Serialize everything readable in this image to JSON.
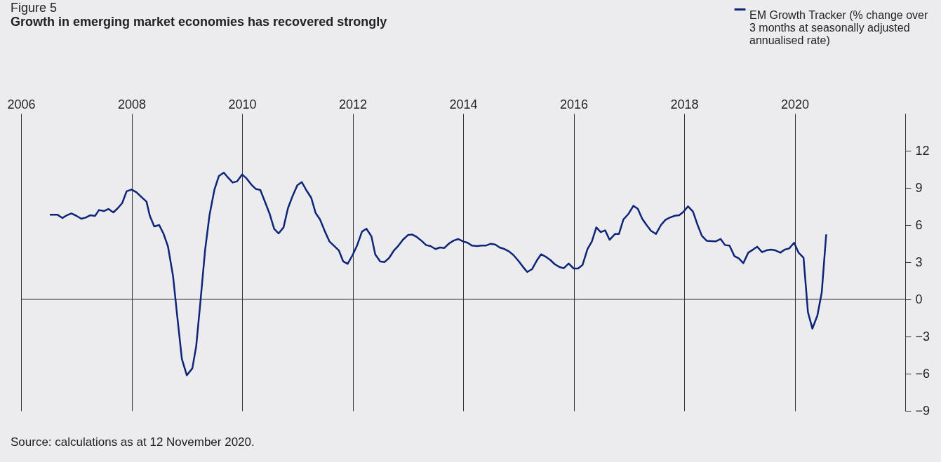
{
  "chart_data": {
    "type": "line",
    "title": "Figure 5",
    "subtitle": "Growth in emerging market economies has recovered strongly",
    "annotations": [
      "Source: calculations as at 12 November 2020."
    ],
    "xlim": [
      2006,
      2022
    ],
    "xticks": [
      2006,
      2008,
      2010,
      2012,
      2014,
      2016,
      2018,
      2020,
      {
        "value": 2022,
        "label": null
      }
    ],
    "ylim": [
      -9,
      15
    ],
    "yticks": [
      -9,
      -6,
      -3,
      0,
      3,
      6,
      9,
      12
    ],
    "grid": "x",
    "legend": "top right",
    "line_style": "solid",
    "ref_lines": [
      {
        "axis": "y",
        "value": 0,
        "color": "#333333"
      }
    ],
    "series": [
      {
        "name": "EM Growth Tracker (% change over 3 months at seasonally adjusted annualised rate)",
        "color": "#0c2577",
        "x": [
          2006.52,
          2006.66,
          2006.75,
          2006.83,
          2006.91,
          2007.0,
          2007.09,
          2007.17,
          2007.25,
          2007.34,
          2007.41,
          2007.5,
          2007.58,
          2007.67,
          2007.75,
          2007.83,
          2007.91,
          2008.0,
          2008.09,
          2008.18,
          2008.27,
          2008.33,
          2008.41,
          2008.5,
          2008.58,
          2008.66,
          2008.75,
          2008.83,
          2008.91,
          2009.0,
          2009.1,
          2009.17,
          2009.25,
          2009.33,
          2009.41,
          2009.5,
          2009.58,
          2009.67,
          2009.75,
          2009.83,
          2009.91,
          2010.0,
          2010.08,
          2010.17,
          2010.25,
          2010.33,
          2010.41,
          2010.5,
          2010.58,
          2010.66,
          2010.75,
          2010.83,
          2010.91,
          2011.0,
          2011.08,
          2011.16,
          2011.25,
          2011.33,
          2011.41,
          2011.5,
          2011.58,
          2011.66,
          2011.75,
          2011.83,
          2011.91,
          2012.0,
          2012.08,
          2012.17,
          2012.25,
          2012.34,
          2012.41,
          2012.5,
          2012.58,
          2012.66,
          2012.75,
          2012.83,
          2012.91,
          2013.0,
          2013.08,
          2013.16,
          2013.25,
          2013.33,
          2013.41,
          2013.5,
          2013.58,
          2013.66,
          2013.75,
          2013.83,
          2013.91,
          2014.0,
          2014.08,
          2014.16,
          2014.25,
          2014.33,
          2014.41,
          2014.5,
          2014.58,
          2014.66,
          2014.75,
          2014.83,
          2014.91,
          2015.0,
          2015.08,
          2015.16,
          2015.25,
          2015.33,
          2015.41,
          2015.5,
          2015.58,
          2015.66,
          2015.75,
          2015.82,
          2015.91,
          2016.0,
          2016.08,
          2016.16,
          2016.25,
          2016.33,
          2016.41,
          2016.49,
          2016.57,
          2016.65,
          2016.75,
          2016.82,
          2016.9,
          2016.99,
          2017.08,
          2017.16,
          2017.24,
          2017.32,
          2017.4,
          2017.49,
          2017.58,
          2017.66,
          2017.74,
          2017.83,
          2017.91,
          2017.99,
          2018.07,
          2018.16,
          2018.24,
          2018.32,
          2018.41,
          2018.57,
          2018.66,
          2018.74,
          2018.82,
          2018.91,
          2018.99,
          2019.07,
          2019.16,
          2019.24,
          2019.32,
          2019.41,
          2019.49,
          2019.57,
          2019.65,
          2019.74,
          2019.82,
          2019.9,
          2019.99,
          2020.07,
          2020.16,
          2020.24,
          2020.32,
          2020.41,
          2020.49,
          2020.57
        ],
        "values": [
          6.83,
          6.83,
          6.57,
          6.79,
          6.94,
          6.75,
          6.51,
          6.6,
          6.79,
          6.74,
          7.21,
          7.13,
          7.3,
          7.02,
          7.36,
          7.77,
          8.72,
          8.87,
          8.64,
          8.26,
          7.89,
          6.75,
          5.89,
          6.0,
          5.28,
          4.25,
          1.89,
          -1.51,
          -4.81,
          -6.13,
          -5.57,
          -3.77,
          0.0,
          3.96,
          6.79,
          8.87,
          9.96,
          10.23,
          9.81,
          9.43,
          9.53,
          10.08,
          9.77,
          9.25,
          8.91,
          8.83,
          7.92,
          6.89,
          5.7,
          5.32,
          5.81,
          7.36,
          8.3,
          9.21,
          9.47,
          8.83,
          8.21,
          6.98,
          6.45,
          5.47,
          4.68,
          4.34,
          3.96,
          3.06,
          2.87,
          3.58,
          4.34,
          5.47,
          5.7,
          5.09,
          3.62,
          3.06,
          3.02,
          3.34,
          3.96,
          4.34,
          4.81,
          5.19,
          5.23,
          5.04,
          4.72,
          4.38,
          4.3,
          4.06,
          4.19,
          4.15,
          4.53,
          4.75,
          4.87,
          4.68,
          4.57,
          4.34,
          4.3,
          4.34,
          4.34,
          4.49,
          4.43,
          4.19,
          4.06,
          3.87,
          3.58,
          3.11,
          2.64,
          2.21,
          2.45,
          3.11,
          3.64,
          3.43,
          3.17,
          2.83,
          2.6,
          2.51,
          2.89,
          2.49,
          2.49,
          2.77,
          4.06,
          4.68,
          5.81,
          5.43,
          5.57,
          4.81,
          5.28,
          5.28,
          6.45,
          6.89,
          7.55,
          7.32,
          6.51,
          6.0,
          5.53,
          5.28,
          6.0,
          6.42,
          6.6,
          6.75,
          6.79,
          7.08,
          7.51,
          7.08,
          6.04,
          5.13,
          4.72,
          4.68,
          4.87,
          4.38,
          4.34,
          3.49,
          3.3,
          2.92,
          3.77,
          4.0,
          4.25,
          3.81,
          3.96,
          4.02,
          3.96,
          3.77,
          4.02,
          4.11,
          4.57,
          3.77,
          3.36,
          -1.04,
          -2.36,
          -1.32,
          0.57,
          5.25
        ]
      }
    ]
  }
}
